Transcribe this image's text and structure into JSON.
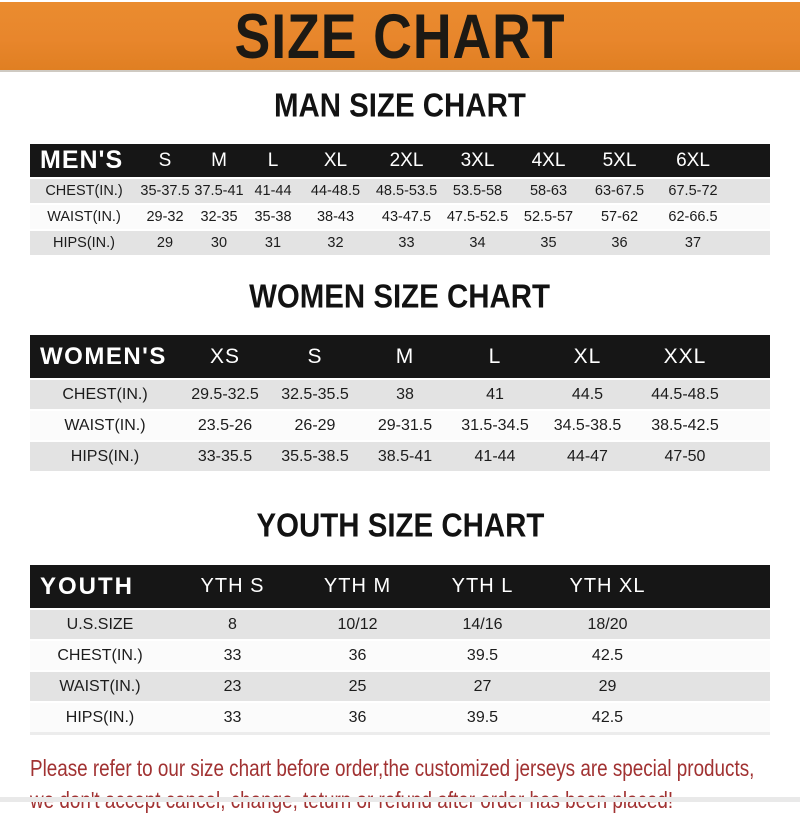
{
  "banner": {
    "title": "SIZE CHART",
    "bg_color": "#E8862C",
    "text_color": "#1C1914"
  },
  "colors": {
    "table_header_bg": "#161616",
    "table_header_text": "#FFFFFF",
    "row_alt_gray": "#E3E3E3",
    "row_white": "#FBFBFB",
    "note_red": "#A13232"
  },
  "sections": [
    {
      "heading": "MAN SIZE CHART",
      "header_label": "MEN'S",
      "columns": [
        "S",
        "M",
        "L",
        "XL",
        "2XL",
        "3XL",
        "4XL",
        "5XL",
        "6XL"
      ],
      "rows": [
        {
          "label": "CHEST(IN.)",
          "values": [
            "35-37.5",
            "37.5-41",
            "41-44",
            "44-48.5",
            "48.5-53.5",
            "53.5-58",
            "58-63",
            "63-67.5",
            "67.5-72"
          ]
        },
        {
          "label": "WAIST(IN.)",
          "values": [
            "29-32",
            "32-35",
            "35-38",
            "38-43",
            "43-47.5",
            "47.5-52.5",
            "52.5-57",
            "57-62",
            "62-66.5"
          ]
        },
        {
          "label": "HIPS(IN.)",
          "values": [
            "29",
            "30",
            "31",
            "32",
            "33",
            "34",
            "35",
            "36",
            "37"
          ]
        }
      ]
    },
    {
      "heading": "WOMEN SIZE CHART",
      "header_label": "WOMEN'S",
      "columns": [
        "XS",
        "S",
        "M",
        "L",
        "XL",
        "XXL"
      ],
      "rows": [
        {
          "label": "CHEST(IN.)",
          "values": [
            "29.5-32.5",
            "32.5-35.5",
            "38",
            "41",
            "44.5",
            "44.5-48.5"
          ]
        },
        {
          "label": "WAIST(IN.)",
          "values": [
            "23.5-26",
            "26-29",
            "29-31.5",
            "31.5-34.5",
            "34.5-38.5",
            "38.5-42.5"
          ]
        },
        {
          "label": "HIPS(IN.)",
          "values": [
            "33-35.5",
            "35.5-38.5",
            "38.5-41",
            "41-44",
            "44-47",
            "47-50"
          ]
        }
      ]
    },
    {
      "heading": "YOUTH SIZE CHART",
      "header_label": "YOUTH",
      "columns": [
        "YTH S",
        "YTH M",
        "YTH L",
        "YTH XL"
      ],
      "rows": [
        {
          "label": "U.S.SIZE",
          "values": [
            "8",
            "10/12",
            "14/16",
            "18/20"
          ]
        },
        {
          "label": "CHEST(IN.)",
          "values": [
            "33",
            "36",
            "39.5",
            "42.5"
          ]
        },
        {
          "label": "WAIST(IN.)",
          "values": [
            "23",
            "25",
            "27",
            "29"
          ]
        },
        {
          "label": "HIPS(IN.)",
          "values": [
            "33",
            "36",
            "39.5",
            "42.5"
          ]
        }
      ]
    }
  ],
  "footer": {
    "line1": "Please refer to our size chart before order,the customized jerseys are special products,",
    "line2": "we don't accept cancel, change, teturn or refund after order has been placed!"
  }
}
